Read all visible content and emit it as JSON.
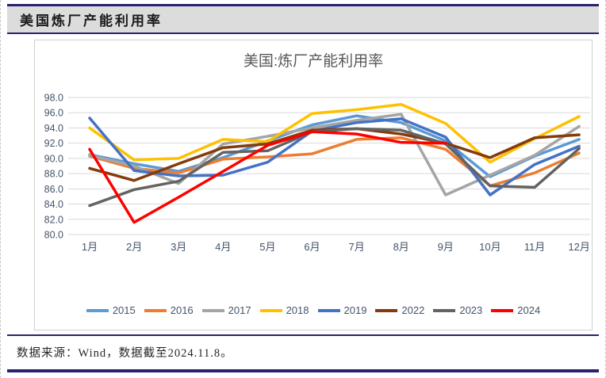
{
  "header": {
    "title": "美国炼厂产能利用率"
  },
  "footer": {
    "text": "数据来源：Wind，数据截至2024.11.8。"
  },
  "chart_data": {
    "type": "line",
    "title": "美国:炼厂产能利用率",
    "categories": [
      "1月",
      "2月",
      "3月",
      "4月",
      "5月",
      "6月",
      "7月",
      "8月",
      "9月",
      "10月",
      "11月",
      "12月"
    ],
    "ylim": [
      80,
      98
    ],
    "ytick_step": 2,
    "ytick_decimals": 1,
    "grid": true,
    "legend_position": "bottom",
    "axis_label_color": "#44546A",
    "grid_color": "#D9D9D9",
    "series": [
      {
        "name": "2015",
        "color": "#5B9BD5",
        "values": [
          90.5,
          89.3,
          88.3,
          90.1,
          92.3,
          94.4,
          95.6,
          94.7,
          92.3,
          87.6,
          90.3,
          92.5
        ]
      },
      {
        "name": "2016",
        "color": "#ED7D31",
        "values": [
          90.3,
          88.7,
          88.1,
          89.9,
          90.2,
          90.6,
          92.5,
          92.7,
          91.2,
          86.4,
          88.1,
          90.7
        ]
      },
      {
        "name": "2017",
        "color": "#A5A5A5",
        "values": [
          90.4,
          89.0,
          86.7,
          91.9,
          92.9,
          94.0,
          95.0,
          95.8,
          85.2,
          87.8,
          90.4,
          94.2
        ]
      },
      {
        "name": "2018",
        "color": "#FFC000",
        "values": [
          94.0,
          89.8,
          90.0,
          92.5,
          92.2,
          95.9,
          96.4,
          97.1,
          94.6,
          89.5,
          92.6,
          95.5
        ]
      },
      {
        "name": "2019",
        "color": "#4472C4",
        "values": [
          95.3,
          88.4,
          87.7,
          87.8,
          89.5,
          93.6,
          94.7,
          95.2,
          92.8,
          85.2,
          89.2,
          91.6
        ]
      },
      {
        "name": "2022",
        "color": "#843C0C",
        "values": [
          88.7,
          87.1,
          89.3,
          91.4,
          91.9,
          93.7,
          93.9,
          93.2,
          92.0,
          90.1,
          92.7,
          93.1
        ]
      },
      {
        "name": "2023",
        "color": "#636363",
        "values": [
          83.8,
          85.9,
          87.0,
          90.8,
          91.0,
          93.5,
          93.9,
          93.7,
          91.9,
          86.4,
          86.2,
          91.3
        ]
      },
      {
        "name": "2024",
        "color": "#FF0000",
        "values": [
          91.2,
          81.6,
          84.9,
          88.3,
          91.7,
          93.5,
          93.2,
          92.1,
          92.0,
          null,
          null,
          null
        ]
      }
    ]
  }
}
